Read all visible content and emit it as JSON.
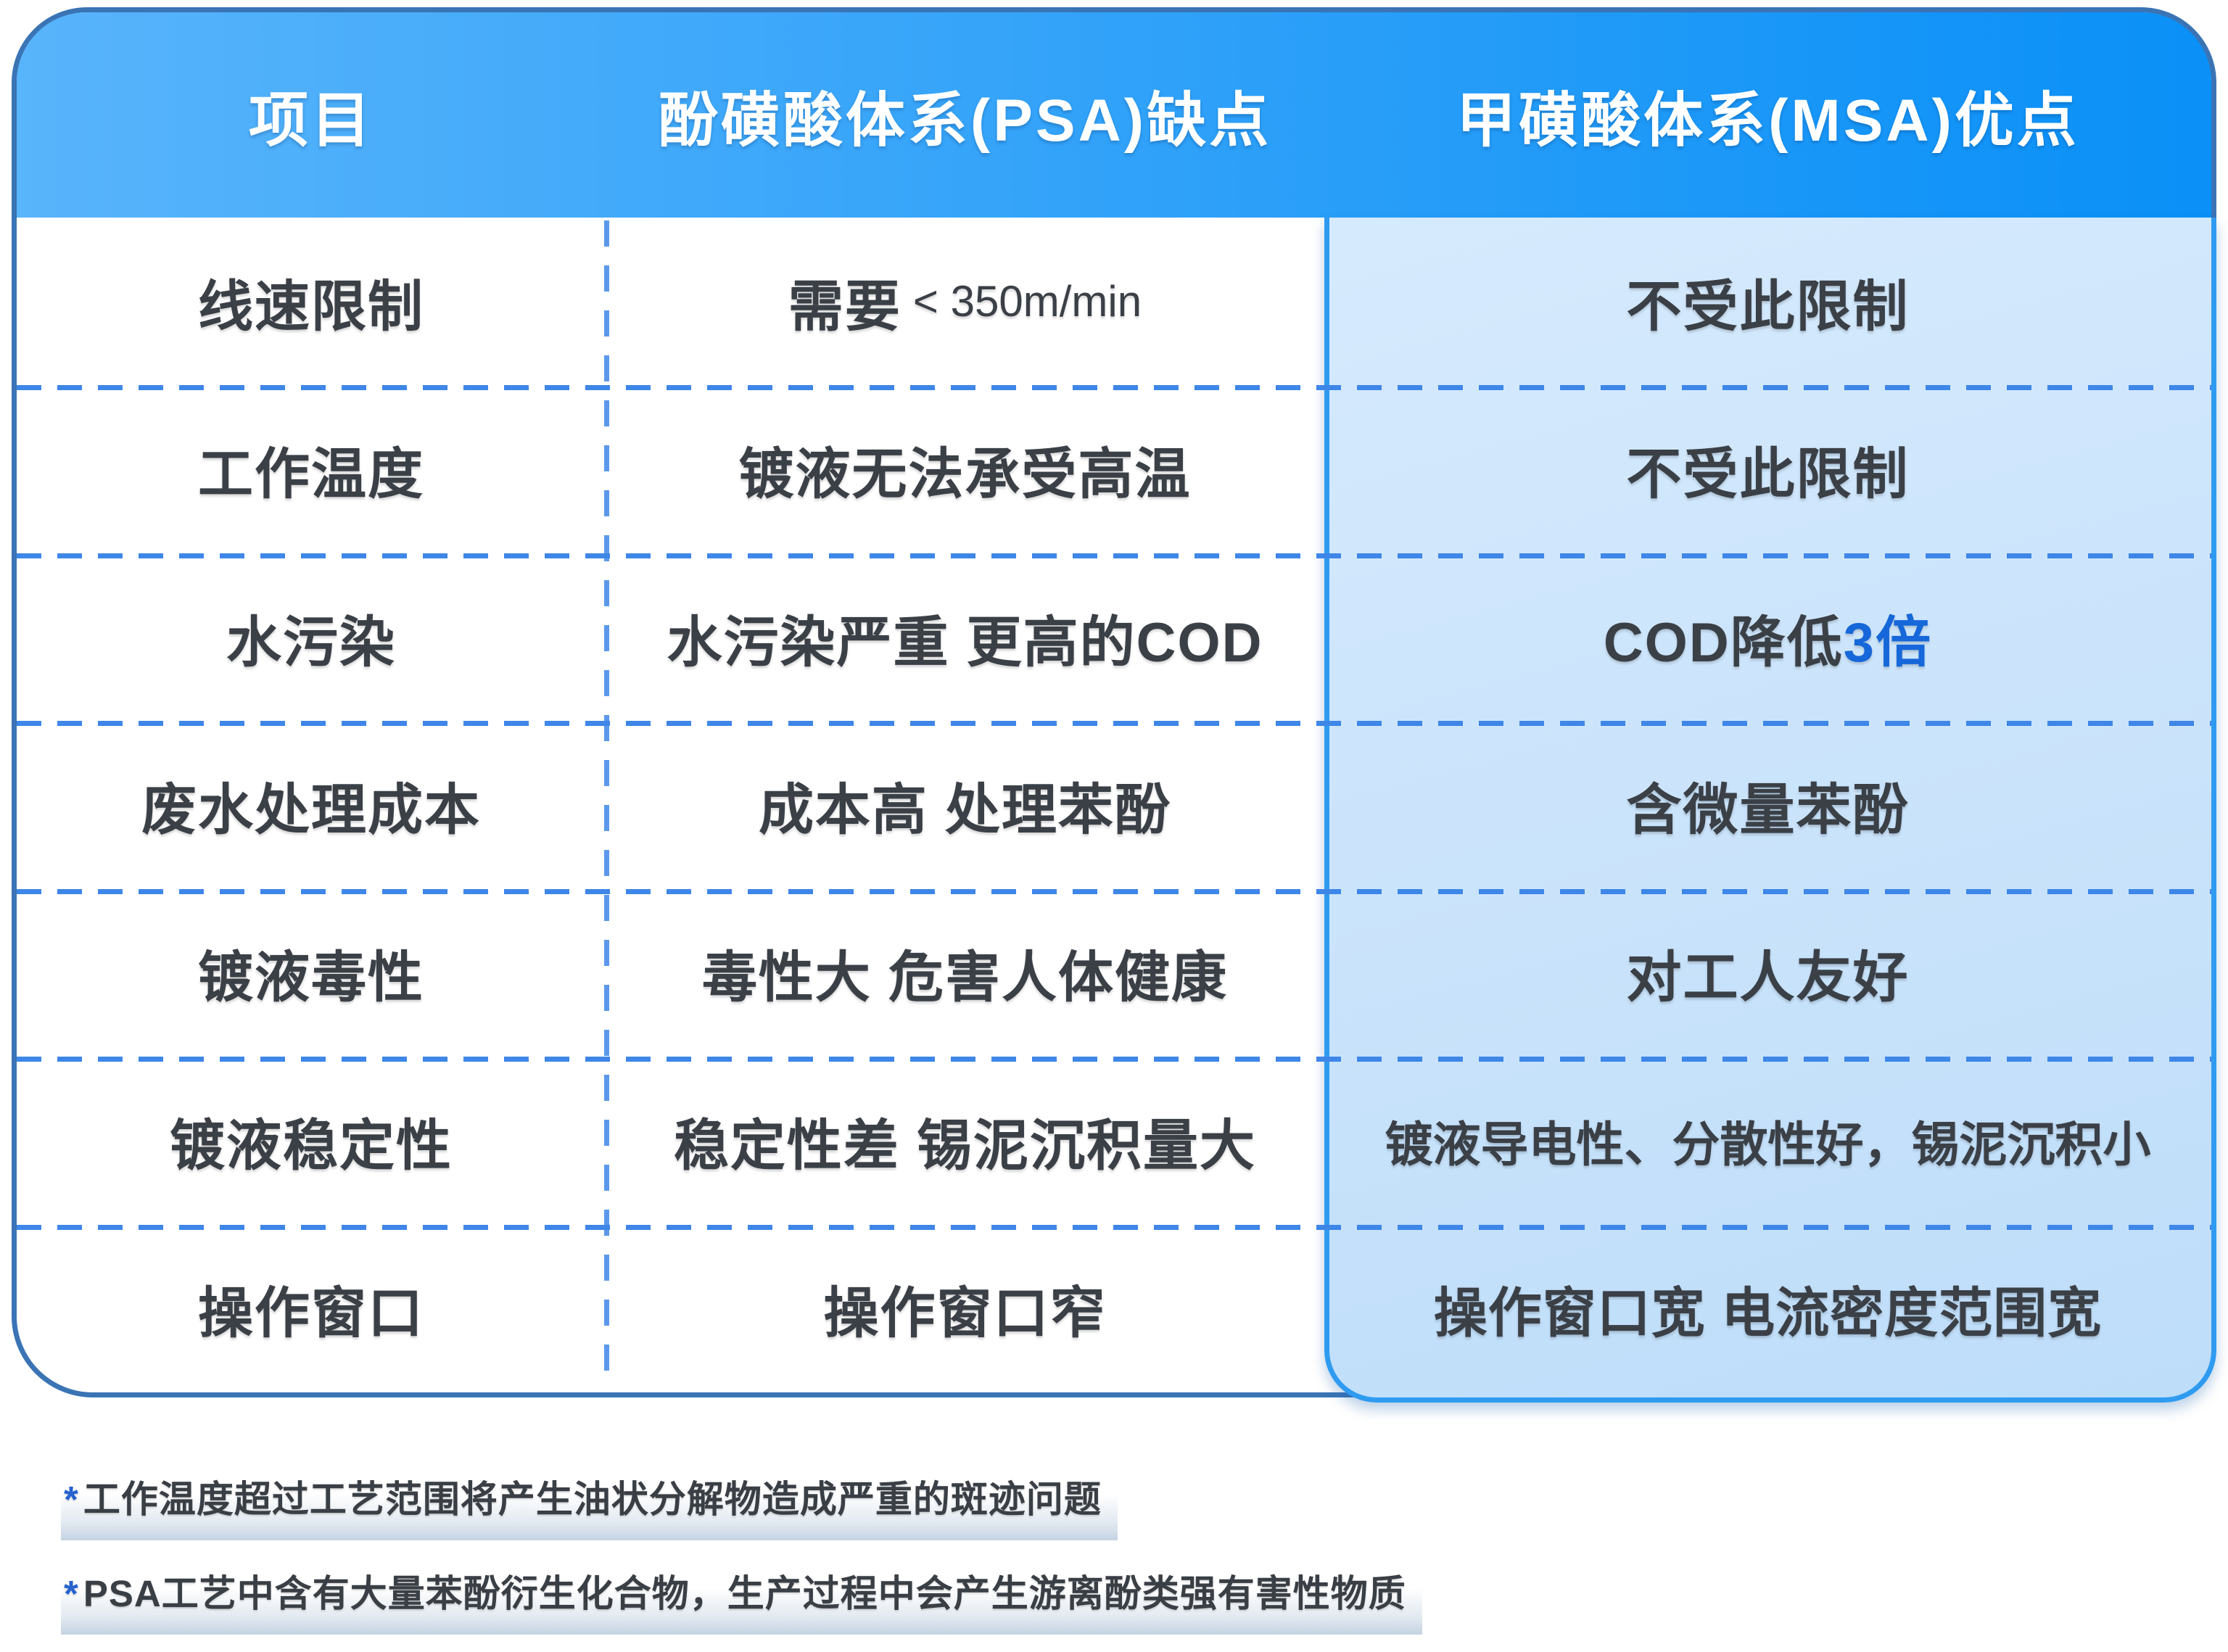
{
  "table": {
    "headers": [
      {
        "label": "项目"
      },
      {
        "label": "酚磺酸体系(PSA)缺点"
      },
      {
        "label": "甲磺酸体系(MSA)优点"
      }
    ],
    "rows": [
      {
        "item": "线速限制",
        "psa": "需要",
        "psa_suffix": "< 350m/min",
        "msa": "不受此限制"
      },
      {
        "item": "工作温度",
        "psa": "镀液无法承受高温",
        "msa": "不受此限制"
      },
      {
        "item": "水污染",
        "psa": "水污染严重 更高的COD",
        "msa": "COD降低",
        "msa_highlight": "3倍"
      },
      {
        "item": "废水处理成本",
        "psa": "成本高 处理苯酚",
        "msa": "含微量苯酚"
      },
      {
        "item": "镀液毒性",
        "psa": "毒性大 危害人体健康",
        "msa": "对工人友好"
      },
      {
        "item": "镀液稳定性",
        "psa": "稳定性差 锡泥沉积量大",
        "msa": "镀液导电性、分散性好，锡泥沉积小"
      },
      {
        "item": "操作窗口",
        "psa": "操作窗口窄",
        "msa": "操作窗口宽 电流密度范围宽"
      }
    ]
  },
  "footnotes": [
    {
      "marker": "*",
      "text": "工作温度超过工艺范围将产生油状分解物造成严重的斑迹问题"
    },
    {
      "marker": "*",
      "text": "PSA工艺中含有大量苯酚衍生化合物，生产过程中会产生游离酚类强有害性物质"
    }
  ],
  "colors": {
    "header_gradient_start": "#58B4FB",
    "header_gradient_end": "#0A90F7",
    "table_border": "#3A74B5",
    "dashed_line": "#3E86E8",
    "msa_card_border": "#2F9BF0",
    "msa_card_fill": "#CBE4FB",
    "text_dark": "#3B4047",
    "accent_blue_text": "#1667D9",
    "footnote_marker_blue": "#2563CE"
  },
  "chart_data": {
    "type": "table",
    "title": "酚磺酸体系(PSA)与甲磺酸体系(MSA)对比",
    "columns": [
      "项目",
      "酚磺酸体系(PSA)缺点",
      "甲磺酸体系(MSA)优点"
    ],
    "rows": [
      [
        "线速限制",
        "需要 < 350m/min",
        "不受此限制"
      ],
      [
        "工作温度",
        "镀液无法承受高温",
        "不受此限制"
      ],
      [
        "水污染",
        "水污染严重 更高的COD",
        "COD降低3倍"
      ],
      [
        "废水处理成本",
        "成本高 处理苯酚",
        "含微量苯酚"
      ],
      [
        "镀液毒性",
        "毒性大 危害人体健康",
        "对工人友好"
      ],
      [
        "镀液稳定性",
        "稳定性差 锡泥沉积量大",
        "镀液导电性、分散性好，锡泥沉积小"
      ],
      [
        "操作窗口",
        "操作窗口窄",
        "操作窗口宽 电流密度范围宽"
      ]
    ],
    "notes": [
      "*工作温度超过工艺范围将产生油状分解物造成严重的斑迹问题",
      "*PSA工艺中含有大量苯酚衍生化合物，生产过程中会产生游离酚类强有害性物质"
    ],
    "layout_hints": {
      "highlight_column": "甲磺酸体系(MSA)优点",
      "grid": "dashed"
    }
  }
}
